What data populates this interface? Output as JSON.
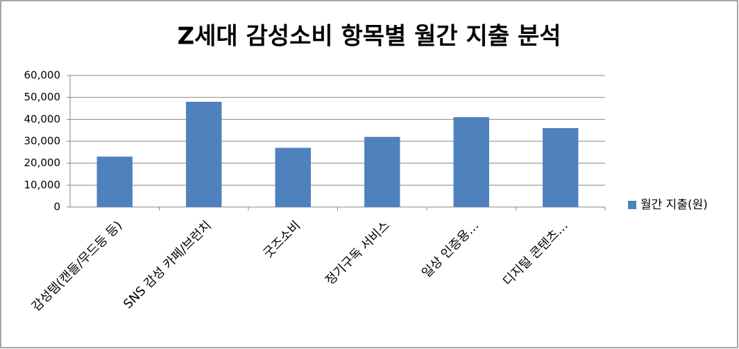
{
  "chart_data": {
    "type": "bar",
    "title": "Z세대 감성소비 항목별 월간 지출 분석",
    "categories": [
      "감성템(캔들/무드등 등)",
      "SNS 감성 카페/브런치",
      "굿즈소비",
      "정기구독 서비스",
      "일상 인증용…",
      "디지털 콘텐츠…"
    ],
    "series": [
      {
        "name": "월간 지출(원)",
        "color": "#4f81bd",
        "values": [
          23000,
          48000,
          27000,
          32000,
          41000,
          36000
        ]
      }
    ],
    "ylim": [
      0,
      60000
    ],
    "yticks": [
      0,
      {
        "value": 10000,
        "label": "10,000"
      },
      {
        "value": 20000,
        "label": "20,000"
      },
      {
        "value": 30000,
        "label": "30,000"
      },
      {
        "value": 40000,
        "label": "40,000"
      },
      {
        "value": 50000,
        "label": "50,000"
      },
      {
        "value": 60000,
        "label": "60,000"
      }
    ],
    "grid": true,
    "legend": "right"
  }
}
